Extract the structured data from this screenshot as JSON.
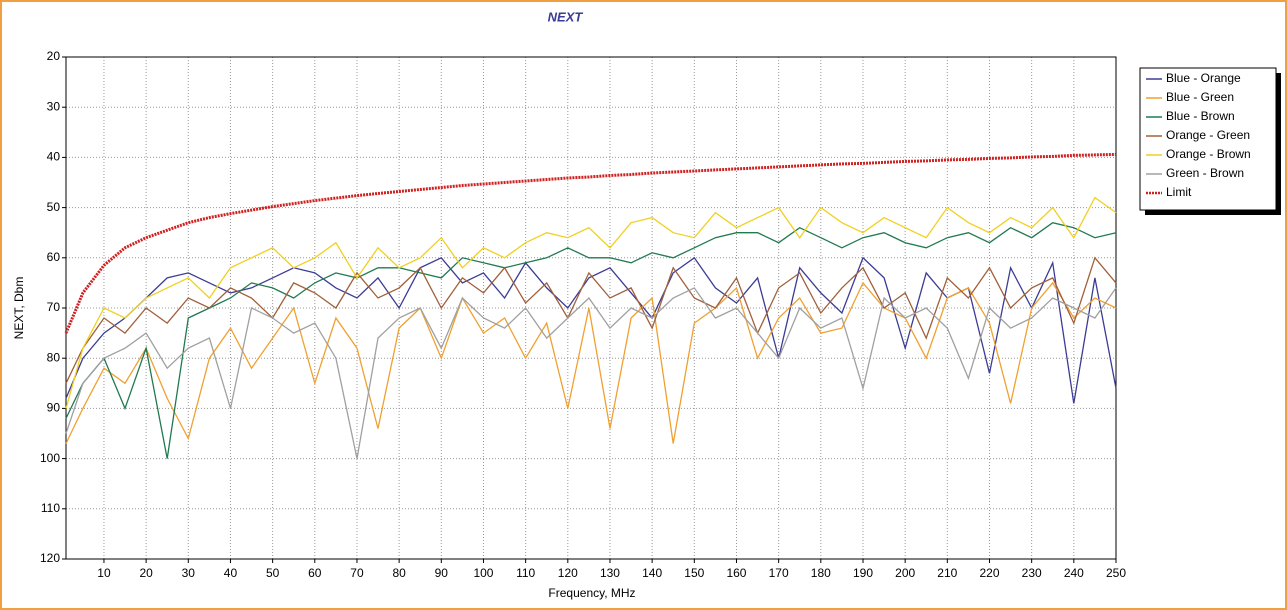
{
  "chart_data": {
    "type": "line",
    "title": "NEXT",
    "xlabel": "Frequency, MHz",
    "ylabel": "NEXT, Dbm",
    "x": [
      1,
      5,
      10,
      15,
      20,
      25,
      30,
      35,
      40,
      45,
      50,
      55,
      60,
      65,
      70,
      75,
      80,
      85,
      90,
      95,
      100,
      105,
      110,
      115,
      120,
      125,
      130,
      135,
      140,
      145,
      150,
      155,
      160,
      165,
      170,
      175,
      180,
      185,
      190,
      195,
      200,
      205,
      210,
      215,
      220,
      225,
      230,
      235,
      240,
      245,
      250
    ],
    "xlim": [
      1,
      250
    ],
    "xticks": [
      10,
      20,
      30,
      40,
      50,
      60,
      70,
      80,
      90,
      100,
      110,
      120,
      130,
      140,
      150,
      160,
      170,
      180,
      190,
      200,
      210,
      220,
      230,
      240,
      250
    ],
    "ylim": [
      120,
      20
    ],
    "yticks": [
      20,
      30,
      40,
      50,
      60,
      70,
      80,
      90,
      100,
      110,
      120
    ],
    "grid": true,
    "legend": "right",
    "series": [
      {
        "name": "Blue - Orange",
        "color": "#3c3c96",
        "values": [
          88,
          80,
          75,
          72,
          68,
          64,
          63,
          65,
          67,
          66,
          64,
          62,
          63,
          66,
          68,
          64,
          70,
          62,
          60,
          65,
          63,
          68,
          61,
          66,
          70,
          64,
          62,
          67,
          72,
          63,
          60,
          66,
          69,
          64,
          80,
          62,
          67,
          71,
          60,
          64,
          78,
          63,
          68,
          66,
          83,
          62,
          70,
          61,
          89,
          64,
          86
        ]
      },
      {
        "name": "Blue - Green",
        "color": "#f0a030",
        "values": [
          97,
          90,
          82,
          85,
          78,
          88,
          96,
          80,
          74,
          82,
          76,
          70,
          85,
          72,
          78,
          94,
          74,
          70,
          80,
          68,
          75,
          72,
          80,
          73,
          90,
          70,
          94,
          72,
          68,
          97,
          73,
          70,
          66,
          80,
          72,
          68,
          75,
          74,
          65,
          70,
          72,
          80,
          68,
          66,
          73,
          89,
          70,
          65,
          72,
          68,
          70
        ]
      },
      {
        "name": "Blue - Brown",
        "color": "#207a50",
        "values": [
          92,
          85,
          80,
          90,
          78,
          100,
          72,
          70,
          68,
          65,
          66,
          68,
          65,
          63,
          64,
          62,
          62,
          63,
          64,
          60,
          61,
          62,
          61,
          60,
          58,
          60,
          60,
          61,
          59,
          60,
          58,
          56,
          55,
          55,
          57,
          54,
          56,
          58,
          56,
          55,
          57,
          58,
          56,
          55,
          57,
          54,
          56,
          53,
          54,
          56,
          55
        ]
      },
      {
        "name": "Orange - Green",
        "color": "#a0603a",
        "values": [
          85,
          78,
          72,
          75,
          70,
          73,
          68,
          70,
          66,
          68,
          72,
          65,
          67,
          70,
          63,
          68,
          66,
          62,
          70,
          64,
          67,
          62,
          69,
          65,
          72,
          63,
          68,
          66,
          74,
          62,
          68,
          70,
          64,
          75,
          66,
          63,
          71,
          66,
          62,
          70,
          67,
          76,
          64,
          68,
          62,
          70,
          66,
          64,
          73,
          60,
          65
        ]
      },
      {
        "name": "Orange - Brown",
        "color": "#f0d020",
        "values": [
          90,
          78,
          70,
          72,
          68,
          66,
          64,
          68,
          62,
          60,
          58,
          62,
          60,
          57,
          64,
          58,
          62,
          60,
          56,
          62,
          58,
          60,
          57,
          55,
          56,
          54,
          58,
          53,
          52,
          55,
          56,
          51,
          54,
          52,
          50,
          56,
          50,
          53,
          55,
          52,
          54,
          56,
          50,
          53,
          55,
          52,
          54,
          50,
          56,
          48,
          51
        ]
      },
      {
        "name": "Green - Brown",
        "color": "#a0a0a0",
        "values": [
          95,
          85,
          80,
          78,
          75,
          82,
          78,
          76,
          90,
          70,
          72,
          75,
          73,
          80,
          100,
          76,
          72,
          70,
          78,
          68,
          72,
          74,
          70,
          76,
          72,
          68,
          74,
          70,
          72,
          68,
          66,
          72,
          70,
          75,
          80,
          70,
          74,
          72,
          86,
          68,
          72,
          70,
          74,
          84,
          70,
          74,
          72,
          68,
          70,
          72,
          66
        ]
      },
      {
        "name": "Limit",
        "color": "#d02020",
        "dashed": true,
        "values": [
          75,
          67,
          61.5,
          58,
          56,
          54.5,
          53,
          52,
          51.2,
          50.5,
          49.8,
          49.2,
          48.6,
          48.1,
          47.6,
          47.2,
          46.8,
          46.4,
          46,
          45.6,
          45.3,
          45,
          44.7,
          44.4,
          44.1,
          43.9,
          43.6,
          43.4,
          43.1,
          42.9,
          42.7,
          42.5,
          42.3,
          42.1,
          41.9,
          41.7,
          41.5,
          41.3,
          41.2,
          41,
          40.8,
          40.7,
          40.5,
          40.4,
          40.2,
          40.1,
          39.9,
          39.8,
          39.6,
          39.5,
          39.4
        ]
      }
    ]
  }
}
